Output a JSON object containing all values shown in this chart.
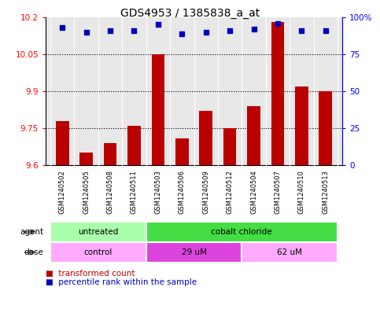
{
  "title": "GDS4953 / 1385838_a_at",
  "samples": [
    "GSM1240502",
    "GSM1240505",
    "GSM1240508",
    "GSM1240511",
    "GSM1240503",
    "GSM1240506",
    "GSM1240509",
    "GSM1240512",
    "GSM1240504",
    "GSM1240507",
    "GSM1240510",
    "GSM1240513"
  ],
  "bar_values": [
    9.78,
    9.65,
    9.69,
    9.76,
    10.05,
    9.71,
    9.82,
    9.75,
    9.84,
    10.18,
    9.92,
    9.9
  ],
  "dot_values": [
    93,
    90,
    91,
    91,
    95,
    89,
    90,
    91,
    92,
    96,
    91,
    91
  ],
  "ylim_left": [
    9.6,
    10.2
  ],
  "ylim_right": [
    0,
    100
  ],
  "yticks_left": [
    9.6,
    9.75,
    9.9,
    10.05,
    10.2
  ],
  "yticks_right": [
    0,
    25,
    50,
    75,
    100
  ],
  "ytick_labels_right": [
    "0",
    "25",
    "50",
    "75",
    "100%"
  ],
  "bar_color": "#bb0000",
  "dot_color": "#0000bb",
  "bar_baseline": 9.6,
  "agent_groups": [
    {
      "label": "untreated",
      "start": 0,
      "end": 4,
      "color": "#aaffaa"
    },
    {
      "label": "cobalt chloride",
      "start": 4,
      "end": 12,
      "color": "#44dd44"
    }
  ],
  "dose_groups": [
    {
      "label": "control",
      "start": 0,
      "end": 4,
      "color": "#ffaaff"
    },
    {
      "label": "29 uM",
      "start": 4,
      "end": 8,
      "color": "#dd44dd"
    },
    {
      "label": "62 uM",
      "start": 8,
      "end": 12,
      "color": "#ffaaff"
    }
  ],
  "legend_items": [
    {
      "color": "#bb0000",
      "label": "transformed count"
    },
    {
      "color": "#0000bb",
      "label": "percentile rank within the sample"
    }
  ],
  "hlines": [
    9.75,
    9.9,
    10.05
  ],
  "plot_bg": "#e8e8e8",
  "background_color": "#ffffff",
  "title_fontsize": 10,
  "tick_fontsize": 7.5,
  "sample_fontsize": 6,
  "legend_fontsize": 7.5
}
